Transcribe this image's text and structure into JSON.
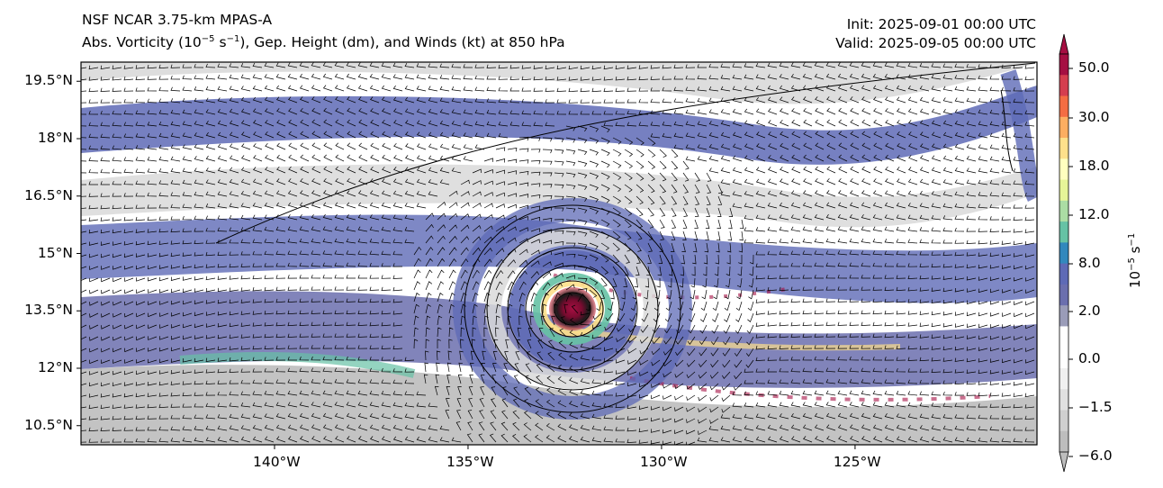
{
  "header": {
    "line1": "NSF NCAR 3.75-km MPAS-A",
    "line2_pre": "Abs. Vorticity (10",
    "line2_exp1": "−5",
    "line2_mid": " s",
    "line2_exp2": "−1",
    "line2_post": "), Gep. Height (dm), and Winds (kt) at 850 hPa",
    "init": "Init: 2025-09-01 00:00 UTC",
    "valid": "Valid: 2025-09-05 00:00 UTC"
  },
  "map": {
    "lon_range": [
      -145.0,
      -120.3
    ],
    "lat_range": [
      10.0,
      20.0
    ],
    "cyclone_center": {
      "lon": -132.0,
      "lat": 13.7
    },
    "x_ticks": [
      {
        "lon": -140,
        "label": "140°W"
      },
      {
        "lon": -135,
        "label": "135°W"
      },
      {
        "lon": -130,
        "label": "130°W"
      },
      {
        "lon": -125,
        "label": "125°W"
      }
    ],
    "y_ticks": [
      {
        "lat": 19.5,
        "label": "19.5°N"
      },
      {
        "lat": 18.0,
        "label": "18°N"
      },
      {
        "lat": 16.5,
        "label": "16.5°N"
      },
      {
        "lat": 15.0,
        "label": "15°N"
      },
      {
        "lat": 13.5,
        "label": "13.5°N"
      },
      {
        "lat": 12.0,
        "label": "12°N"
      },
      {
        "lat": 10.5,
        "label": "10.5°N"
      }
    ]
  },
  "colorbar": {
    "unit_base": "10",
    "unit_exp1": "−5",
    "unit_mid": " s",
    "unit_exp2": "−1",
    "labels": [
      "50.0",
      "30.0",
      "18.0",
      "12.0",
      "8.0",
      "2.0",
      "0.0",
      "−1.5",
      "−6.0"
    ],
    "colors": [
      "#a50f42",
      "#d53e4f",
      "#f46d43",
      "#fdae61",
      "#fee08b",
      "#ffffbf",
      "#e6f598",
      "#abdda4",
      "#66c2a5",
      "#3288bd",
      "#5e6ab6",
      "#6b6fae",
      "#9a9cb8",
      "#ffffff",
      "#ffffff",
      "#f0f0f0",
      "#e0e0e0",
      "#cfcfcf",
      "#bdbdbd"
    ]
  }
}
